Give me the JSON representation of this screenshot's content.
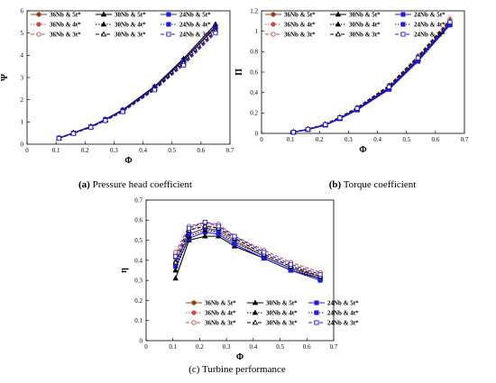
{
  "figure": {
    "captions": [
      {
        "label": "(a)",
        "text": "Pressure head coefficient"
      },
      {
        "label": "(b)",
        "text": "Torque coefficient"
      },
      {
        "label": "(c)",
        "text": "Turbine performance"
      }
    ]
  },
  "chart_data": [
    {
      "type": "line",
      "xlabel": "Φ",
      "ylabel": "Ψ",
      "xlim": [
        0,
        0.7
      ],
      "ylim": [
        0,
        6
      ],
      "xticks": [
        "0",
        "0.1",
        "0.2",
        "0.3",
        "0.4",
        "0.5",
        "0.6",
        "0.7"
      ],
      "yticks": [
        "0",
        "1",
        "2",
        "3",
        "4",
        "5",
        "6"
      ],
      "legend_position": "top",
      "series": [
        {
          "name": "36Nb & 5t*",
          "color": "#8B4513",
          "marker": "circle",
          "dash": "solid",
          "fill": "filled",
          "x": [
            0.11,
            0.16,
            0.22,
            0.27,
            0.33,
            0.44,
            0.54,
            0.65
          ],
          "y": [
            0.28,
            0.5,
            0.78,
            1.1,
            1.52,
            2.55,
            3.75,
            5.25
          ]
        },
        {
          "name": "30Nb & 5t*",
          "color": "#000000",
          "marker": "triangle",
          "dash": "solid",
          "fill": "filled",
          "x": [
            0.11,
            0.16,
            0.22,
            0.27,
            0.33,
            0.44,
            0.54,
            0.65
          ],
          "y": [
            0.28,
            0.51,
            0.8,
            1.12,
            1.55,
            2.6,
            3.85,
            5.4
          ]
        },
        {
          "name": "24Nb & 5t*",
          "color": "#1F1FD6",
          "marker": "square",
          "dash": "solid",
          "fill": "filled",
          "x": [
            0.11,
            0.16,
            0.22,
            0.27,
            0.33,
            0.44,
            0.54,
            0.65
          ],
          "y": [
            0.27,
            0.5,
            0.79,
            1.11,
            1.53,
            2.56,
            3.78,
            5.3
          ]
        },
        {
          "name": "36Nb & 4t*",
          "color": "#C0504D",
          "marker": "circle",
          "dash": "dot",
          "fill": "filled",
          "x": [
            0.11,
            0.16,
            0.22,
            0.27,
            0.33,
            0.44,
            0.54,
            0.65
          ],
          "y": [
            0.27,
            0.49,
            0.77,
            1.08,
            1.49,
            2.5,
            3.68,
            5.15
          ]
        },
        {
          "name": "30Nb & 4t*",
          "color": "#000000",
          "marker": "triangle",
          "dash": "dot",
          "fill": "filled",
          "x": [
            0.11,
            0.16,
            0.22,
            0.27,
            0.33,
            0.44,
            0.54,
            0.65
          ],
          "y": [
            0.28,
            0.5,
            0.79,
            1.1,
            1.52,
            2.55,
            3.78,
            5.28
          ]
        },
        {
          "name": "24Nb & 4t*",
          "color": "#1F1FD6",
          "marker": "square",
          "dash": "dot",
          "fill": "filled",
          "x": [
            0.11,
            0.16,
            0.22,
            0.27,
            0.33,
            0.44,
            0.54,
            0.65
          ],
          "y": [
            0.27,
            0.49,
            0.78,
            1.09,
            1.5,
            2.52,
            3.7,
            5.18
          ]
        },
        {
          "name": "36Nb & 3t*",
          "color": "#C0504D",
          "marker": "circle",
          "dash": "dash",
          "fill": "hollow",
          "x": [
            0.11,
            0.16,
            0.22,
            0.27,
            0.33,
            0.44,
            0.54,
            0.65
          ],
          "y": [
            0.26,
            0.48,
            0.75,
            1.05,
            1.45,
            2.45,
            3.6,
            5.05
          ]
        },
        {
          "name": "30Nb & 3t*",
          "color": "#000000",
          "marker": "triangle",
          "dash": "dash",
          "fill": "hollow",
          "x": [
            0.11,
            0.16,
            0.22,
            0.27,
            0.33,
            0.44,
            0.54,
            0.65
          ],
          "y": [
            0.27,
            0.49,
            0.77,
            1.07,
            1.48,
            2.48,
            3.65,
            5.1
          ]
        },
        {
          "name": "24Nb & 3t*",
          "color": "#1F1FD6",
          "marker": "square",
          "dash": "dash",
          "fill": "hollow",
          "x": [
            0.11,
            0.16,
            0.22,
            0.27,
            0.33,
            0.44,
            0.54,
            0.65
          ],
          "y": [
            0.26,
            0.48,
            0.76,
            1.06,
            1.46,
            2.44,
            3.55,
            5.0
          ]
        }
      ]
    },
    {
      "type": "line",
      "xlabel": "Φ",
      "ylabel": "Π",
      "xlim": [
        0,
        0.7
      ],
      "ylim": [
        0,
        1.2
      ],
      "xticks": [
        "0",
        "0.1",
        "0.2",
        "0.3",
        "0.4",
        "0.5",
        "0.6",
        "0.7"
      ],
      "yticks": [
        "0",
        "0.2",
        "0.4",
        "0.6",
        "0.8",
        "1",
        "1.2"
      ],
      "legend_position": "top",
      "series": [
        {
          "name": "36Nb & 5t*",
          "color": "#8B4513",
          "marker": "circle",
          "dash": "solid",
          "fill": "filled",
          "x": [
            0.11,
            0.16,
            0.22,
            0.27,
            0.33,
            0.44,
            0.54,
            0.65
          ],
          "y": [
            0.012,
            0.04,
            0.085,
            0.15,
            0.24,
            0.45,
            0.73,
            1.09
          ]
        },
        {
          "name": "30Nb & 5t*",
          "color": "#000000",
          "marker": "triangle",
          "dash": "solid",
          "fill": "filled",
          "x": [
            0.11,
            0.16,
            0.22,
            0.27,
            0.33,
            0.44,
            0.54,
            0.65
          ],
          "y": [
            0.011,
            0.038,
            0.082,
            0.146,
            0.235,
            0.44,
            0.72,
            1.07
          ]
        },
        {
          "name": "24Nb & 5t*",
          "color": "#1F1FD6",
          "marker": "square",
          "dash": "solid",
          "fill": "filled",
          "x": [
            0.11,
            0.16,
            0.22,
            0.27,
            0.33,
            0.44,
            0.54,
            0.65
          ],
          "y": [
            0.01,
            0.036,
            0.08,
            0.142,
            0.228,
            0.43,
            0.705,
            1.06
          ]
        },
        {
          "name": "36Nb & 4t*",
          "color": "#C0504D",
          "marker": "circle",
          "dash": "dot",
          "fill": "filled",
          "x": [
            0.11,
            0.16,
            0.22,
            0.27,
            0.33,
            0.44,
            0.54,
            0.65
          ],
          "y": [
            0.013,
            0.042,
            0.088,
            0.155,
            0.248,
            0.46,
            0.745,
            1.1
          ]
        },
        {
          "name": "30Nb & 4t*",
          "color": "#000000",
          "marker": "triangle",
          "dash": "dot",
          "fill": "filled",
          "x": [
            0.11,
            0.16,
            0.22,
            0.27,
            0.33,
            0.44,
            0.54,
            0.65
          ],
          "y": [
            0.012,
            0.04,
            0.085,
            0.15,
            0.24,
            0.45,
            0.73,
            1.085
          ]
        },
        {
          "name": "24Nb & 4t*",
          "color": "#1F1FD6",
          "marker": "square",
          "dash": "dot",
          "fill": "filled",
          "x": [
            0.11,
            0.16,
            0.22,
            0.27,
            0.33,
            0.44,
            0.54,
            0.65
          ],
          "y": [
            0.011,
            0.038,
            0.083,
            0.147,
            0.236,
            0.442,
            0.722,
            1.075
          ]
        },
        {
          "name": "36Nb & 3t*",
          "color": "#C0504D",
          "marker": "circle",
          "dash": "dash",
          "fill": "hollow",
          "x": [
            0.11,
            0.16,
            0.22,
            0.27,
            0.33,
            0.44,
            0.54,
            0.65
          ],
          "y": [
            0.014,
            0.044,
            0.092,
            0.16,
            0.255,
            0.472,
            0.76,
            1.12
          ]
        },
        {
          "name": "30Nb & 3t*",
          "color": "#000000",
          "marker": "triangle",
          "dash": "dash",
          "fill": "hollow",
          "x": [
            0.11,
            0.16,
            0.22,
            0.27,
            0.33,
            0.44,
            0.54,
            0.65
          ],
          "y": [
            0.013,
            0.042,
            0.089,
            0.157,
            0.25,
            0.465,
            0.75,
            1.105
          ]
        },
        {
          "name": "24Nb & 3t*",
          "color": "#1F1FD6",
          "marker": "square",
          "dash": "dash",
          "fill": "hollow",
          "x": [
            0.11,
            0.16,
            0.22,
            0.27,
            0.33,
            0.44,
            0.54,
            0.65
          ],
          "y": [
            0.012,
            0.04,
            0.086,
            0.152,
            0.244,
            0.455,
            0.738,
            1.09
          ]
        }
      ]
    },
    {
      "type": "line",
      "xlabel": "Φ",
      "ylabel": "η",
      "xlim": [
        0,
        0.7
      ],
      "ylim": [
        0,
        0.7
      ],
      "xticks": [
        "0",
        "0.1",
        "0.2",
        "0.3",
        "0.4",
        "0.5",
        "0.6",
        "0.7"
      ],
      "yticks": [
        "0",
        "0.1",
        "0.2",
        "0.3",
        "0.4",
        "0.5",
        "0.6",
        "0.7"
      ],
      "legend_position": "bottom",
      "series": [
        {
          "name": "36Nb & 5t*",
          "color": "#8B4513",
          "marker": "circle",
          "dash": "solid",
          "fill": "filled",
          "x": [
            0.11,
            0.16,
            0.22,
            0.27,
            0.33,
            0.44,
            0.54,
            0.65
          ],
          "y": [
            0.39,
            0.53,
            0.56,
            0.55,
            0.5,
            0.42,
            0.36,
            0.32
          ]
        },
        {
          "name": "30Nb & 5t*",
          "color": "#000000",
          "marker": "triangle",
          "dash": "solid",
          "fill": "filled",
          "x": [
            0.11,
            0.16,
            0.22,
            0.27,
            0.33,
            0.44,
            0.54,
            0.65
          ],
          "y": [
            0.31,
            0.5,
            0.52,
            0.52,
            0.47,
            0.41,
            0.35,
            0.31
          ]
        },
        {
          "name": "24Nb & 5t*",
          "color": "#1F1FD6",
          "marker": "square",
          "dash": "solid",
          "fill": "filled",
          "x": [
            0.11,
            0.16,
            0.22,
            0.27,
            0.33,
            0.44,
            0.54,
            0.65
          ],
          "y": [
            0.37,
            0.51,
            0.54,
            0.53,
            0.48,
            0.41,
            0.35,
            0.3
          ]
        },
        {
          "name": "36Nb & 4t*",
          "color": "#C0504D",
          "marker": "circle",
          "dash": "dot",
          "fill": "filled",
          "x": [
            0.11,
            0.16,
            0.22,
            0.27,
            0.33,
            0.44,
            0.54,
            0.65
          ],
          "y": [
            0.41,
            0.55,
            0.58,
            0.56,
            0.51,
            0.43,
            0.37,
            0.33
          ]
        },
        {
          "name": "30Nb & 4t*",
          "color": "#000000",
          "marker": "triangle",
          "dash": "dot",
          "fill": "filled",
          "x": [
            0.11,
            0.16,
            0.22,
            0.27,
            0.33,
            0.44,
            0.54,
            0.65
          ],
          "y": [
            0.35,
            0.52,
            0.55,
            0.54,
            0.49,
            0.42,
            0.36,
            0.31
          ]
        },
        {
          "name": "24Nb & 4t*",
          "color": "#1F1FD6",
          "marker": "square",
          "dash": "dot",
          "fill": "filled",
          "x": [
            0.11,
            0.16,
            0.22,
            0.27,
            0.33,
            0.44,
            0.54,
            0.65
          ],
          "y": [
            0.38,
            0.53,
            0.56,
            0.54,
            0.49,
            0.42,
            0.36,
            0.31
          ]
        },
        {
          "name": "36Nb & 3t*",
          "color": "#C0504D",
          "marker": "circle",
          "dash": "dash",
          "fill": "hollow",
          "x": [
            0.11,
            0.16,
            0.22,
            0.27,
            0.33,
            0.44,
            0.54,
            0.65
          ],
          "y": [
            0.44,
            0.57,
            0.59,
            0.58,
            0.52,
            0.45,
            0.39,
            0.34
          ]
        },
        {
          "name": "30Nb & 3t*",
          "color": "#000000",
          "marker": "triangle",
          "dash": "dash",
          "fill": "hollow",
          "x": [
            0.11,
            0.16,
            0.22,
            0.27,
            0.33,
            0.44,
            0.54,
            0.65
          ],
          "y": [
            0.39,
            0.55,
            0.57,
            0.56,
            0.51,
            0.43,
            0.37,
            0.32
          ]
        },
        {
          "name": "24Nb & 3t*",
          "color": "#1F1FD6",
          "marker": "square",
          "dash": "dash",
          "fill": "hollow",
          "x": [
            0.11,
            0.16,
            0.22,
            0.27,
            0.33,
            0.44,
            0.54,
            0.65
          ],
          "y": [
            0.42,
            0.56,
            0.59,
            0.57,
            0.52,
            0.44,
            0.38,
            0.33
          ]
        }
      ]
    }
  ]
}
